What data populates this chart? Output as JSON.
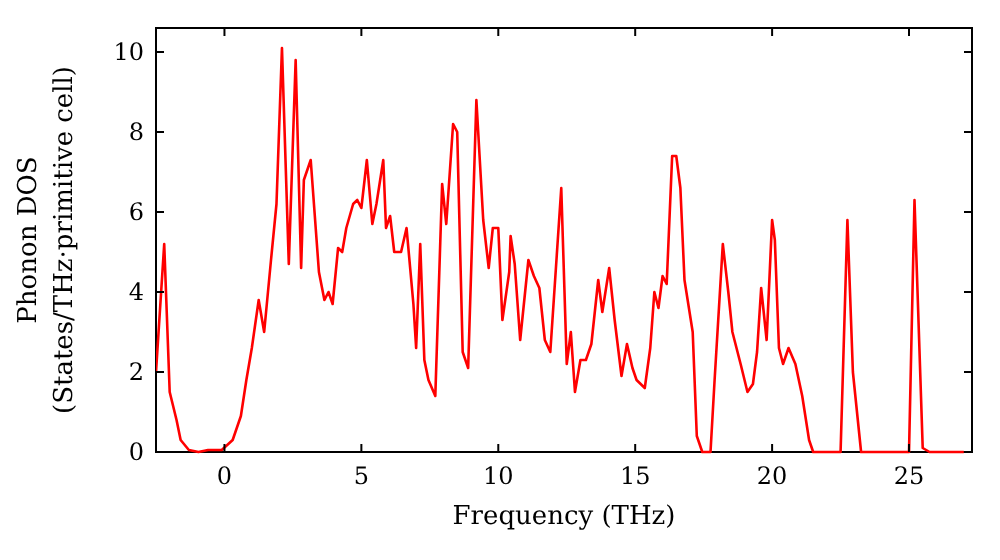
{
  "chart_data": {
    "type": "line",
    "xlabel": "Frequency (THz)",
    "ylabel": "Phonon DOS\n(States/THz·primitive cell)",
    "xlim": [
      -2.5,
      27.3
    ],
    "ylim": [
      0,
      10.6
    ],
    "xticks": [
      0,
      5,
      10,
      15,
      20,
      25
    ],
    "yticks": [
      0,
      2,
      4,
      6,
      8,
      10
    ],
    "grid": false,
    "marker": "none",
    "line_style": "solid",
    "series": [
      {
        "color": "#ff0000",
        "x": [
          -2.5,
          -2.2,
          -2.0,
          -1.75,
          -1.6,
          -1.3,
          -0.95,
          -0.6,
          -0.1,
          0.3,
          0.6,
          0.8,
          1.0,
          1.25,
          1.45,
          1.7,
          1.9,
          2.1,
          2.35,
          2.6,
          2.8,
          2.9,
          3.15,
          3.45,
          3.65,
          3.8,
          3.95,
          4.15,
          4.3,
          4.45,
          4.7,
          4.85,
          5.0,
          5.2,
          5.4,
          5.55,
          5.8,
          5.9,
          6.05,
          6.2,
          6.45,
          6.65,
          6.9,
          7.0,
          7.15,
          7.3,
          7.45,
          7.7,
          7.95,
          8.1,
          8.35,
          8.5,
          8.7,
          8.9,
          9.2,
          9.45,
          9.65,
          9.8,
          10.0,
          10.15,
          10.4,
          10.45,
          10.6,
          10.8,
          11.1,
          11.3,
          11.5,
          11.7,
          11.9,
          12.3,
          12.5,
          12.65,
          12.8,
          13.0,
          13.2,
          13.4,
          13.65,
          13.8,
          14.05,
          14.25,
          14.5,
          14.7,
          14.9,
          15.05,
          15.35,
          15.55,
          15.7,
          15.85,
          16.0,
          16.15,
          16.35,
          16.5,
          16.65,
          16.8,
          17.1,
          17.25,
          17.45,
          17.75,
          17.9,
          18.2,
          18.4,
          18.55,
          18.85,
          19.1,
          19.3,
          19.45,
          19.6,
          19.8,
          20.0,
          20.1,
          20.25,
          20.4,
          20.6,
          20.85,
          21.1,
          21.35,
          21.5,
          22.5,
          22.75,
          22.95,
          23.25,
          25.0,
          25.2,
          25.5,
          25.75,
          27.0
        ],
        "values": [
          2.0,
          5.2,
          1.5,
          0.8,
          0.3,
          0.05,
          0,
          0.05,
          0.05,
          0.3,
          0.9,
          1.8,
          2.6,
          3.8,
          3.0,
          4.8,
          6.2,
          10.1,
          4.7,
          9.8,
          4.6,
          6.8,
          7.3,
          4.5,
          3.8,
          4.0,
          3.7,
          5.1,
          5.0,
          5.6,
          6.2,
          6.3,
          6.1,
          7.3,
          5.7,
          6.2,
          7.3,
          5.6,
          5.9,
          5.0,
          5.0,
          5.6,
          3.7,
          2.6,
          5.2,
          2.3,
          1.8,
          1.4,
          6.7,
          5.7,
          8.2,
          8.0,
          2.5,
          2.1,
          8.8,
          5.8,
          4.6,
          5.6,
          5.6,
          3.3,
          4.5,
          5.4,
          4.7,
          2.8,
          4.8,
          4.4,
          4.1,
          2.8,
          2.5,
          6.6,
          2.2,
          3.0,
          1.5,
          2.3,
          2.3,
          2.7,
          4.3,
          3.5,
          4.6,
          3.3,
          1.9,
          2.7,
          2.1,
          1.8,
          1.6,
          2.6,
          4.0,
          3.6,
          4.4,
          4.2,
          7.4,
          7.4,
          6.6,
          4.3,
          3.0,
          0.4,
          0,
          0,
          1.8,
          5.2,
          4.0,
          3.0,
          2.2,
          1.5,
          1.7,
          2.5,
          4.1,
          2.8,
          5.8,
          5.3,
          2.6,
          2.2,
          2.6,
          2.2,
          1.4,
          0.3,
          0,
          0,
          5.8,
          2.0,
          0,
          0,
          6.3,
          0.1,
          0,
          0
        ]
      }
    ]
  }
}
